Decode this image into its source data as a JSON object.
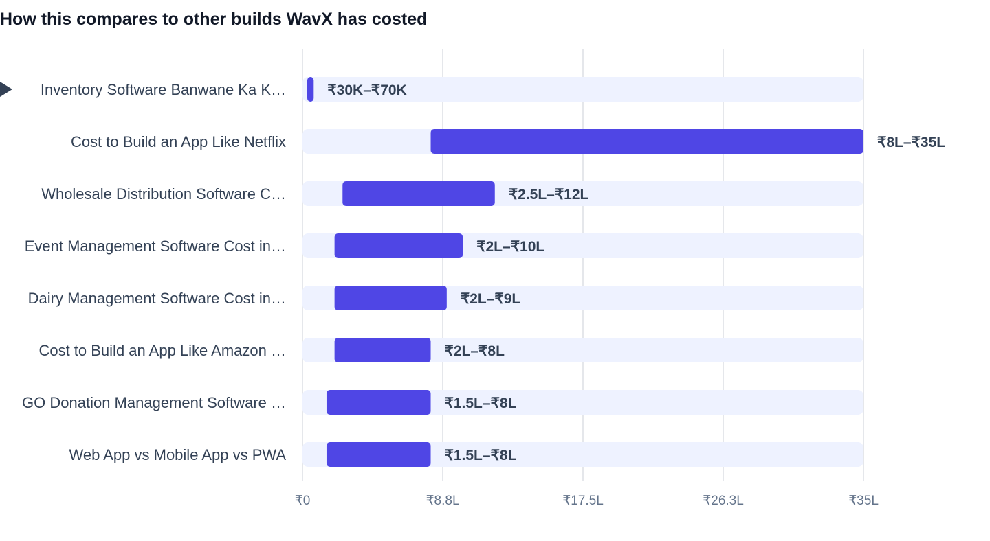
{
  "title": "How this compares to other builds WavX has costed",
  "chart_data": {
    "type": "bar",
    "orientation": "horizontal",
    "range_bars": true,
    "title": "How this compares to other builds WavX has costed",
    "xlabel": "",
    "ylabel": "",
    "xlim": [
      0,
      35
    ],
    "x_unit": "₹ Lakh",
    "grid": true,
    "x_ticks": [
      "₹0",
      "₹8.8L",
      "₹17.5L",
      "₹26.3L",
      "₹35L"
    ],
    "x_tick_values": [
      0,
      8.75,
      17.5,
      26.25,
      35
    ],
    "categories": [
      "Inventory Software Banwane Ka K…",
      "Cost to Build an App Like Netflix",
      "Wholesale Distribution Software C…",
      "Event Management Software Cost in…",
      "Dairy Management Software Cost in…",
      "Cost to Build an App Like Amazon …",
      "GO Donation Management Software …",
      "Web App vs Mobile App vs PWA"
    ],
    "low": [
      0.3,
      8,
      2.5,
      2,
      2,
      2,
      1.5,
      1.5
    ],
    "high": [
      0.7,
      35,
      12,
      10,
      9,
      8,
      8,
      8
    ],
    "value_labels": [
      "₹30K–₹70K",
      "₹8L–₹35L",
      "₹2.5L–₹12L",
      "₹2L–₹10L",
      "₹2L–₹9L",
      "₹2L–₹8L",
      "₹1.5L–₹8L",
      "₹1.5L–₹8L"
    ],
    "highlighted_index": 0,
    "colors": {
      "bar": "#4f46e5",
      "track": "#eef2ff",
      "grid": "#e5e7eb",
      "label": "#334155",
      "tick": "#64748b",
      "marker": "#334155"
    }
  }
}
